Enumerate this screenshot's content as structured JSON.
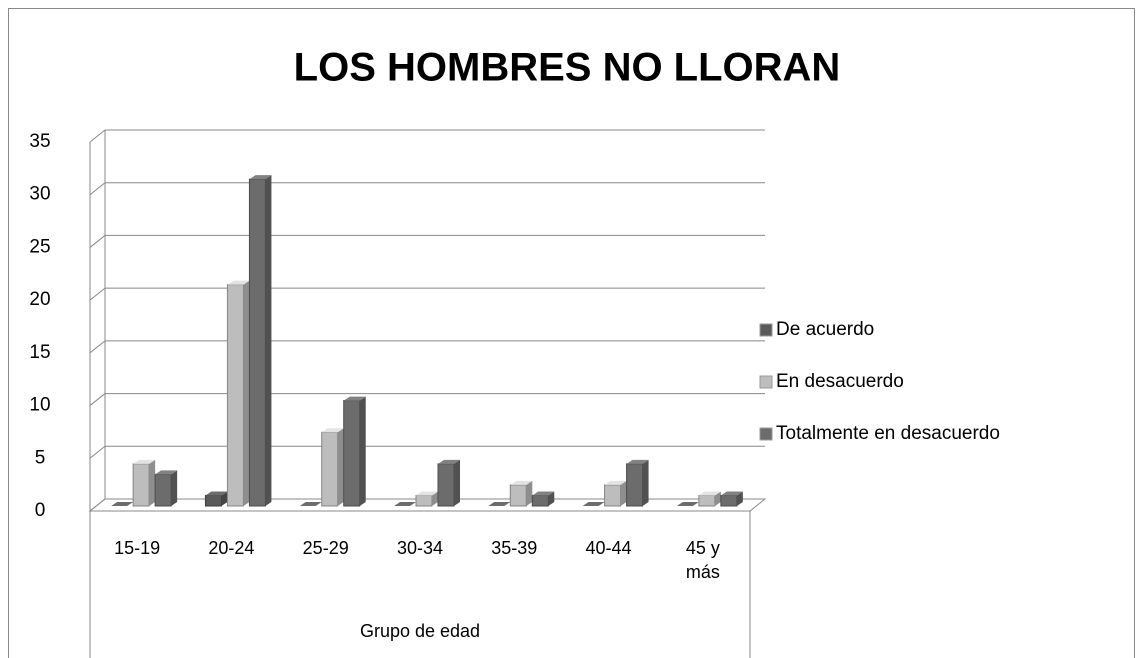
{
  "chart_data": {
    "type": "bar3d",
    "title": "LOS HOMBRES NO LLORAN",
    "categories": [
      "15-19",
      "20-24",
      "25-29",
      "30-34",
      "35-39",
      "40-44",
      "45 y más"
    ],
    "series": [
      {
        "name": "De acuerdo",
        "color": "#5a5a5a",
        "values": [
          0,
          1,
          0,
          0,
          0,
          0,
          0
        ]
      },
      {
        "name": "En desacuerdo",
        "color": "#bdbdbd",
        "values": [
          4,
          21,
          7,
          1,
          2,
          2,
          1
        ]
      },
      {
        "name": "Totalmente en desacuerdo",
        "color": "#6c6c6c",
        "values": [
          3,
          31,
          10,
          4,
          1,
          4,
          1
        ]
      }
    ],
    "x_label": "Grupo de edad",
    "ylim": [
      0,
      35
    ],
    "yticks": [
      0,
      5,
      10,
      15,
      20,
      25,
      30,
      35
    ],
    "grid": true,
    "legend": "right"
  }
}
